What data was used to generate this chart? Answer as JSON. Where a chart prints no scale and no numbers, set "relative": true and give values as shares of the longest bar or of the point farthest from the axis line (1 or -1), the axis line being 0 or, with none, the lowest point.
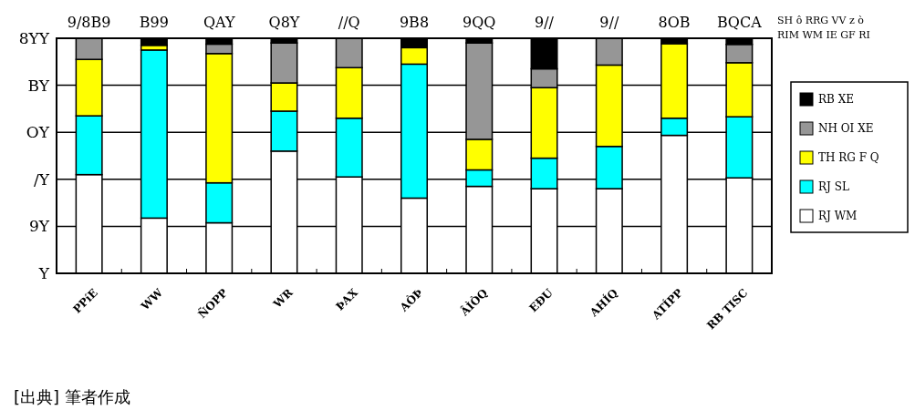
{
  "chart_data": {
    "type": "bar",
    "stacked": true,
    "relative": true,
    "categories": [
      "PPíE",
      "WW",
      "ÑOPP",
      "WR",
      "ÞAX",
      "AÒÞ",
      "ÂÌÒQ",
      "EÐU",
      "AHÍQ",
      "ATÍPP",
      "RB TISC"
    ],
    "series": [
      {
        "name": "RJ WM",
        "color": "#ffffff",
        "values": [
          0.42,
          0.235,
          0.215,
          0.52,
          0.41,
          0.32,
          0.37,
          0.36,
          0.36,
          0.587,
          0.406
        ]
      },
      {
        "name": "RJ SL",
        "color": "#00ffff",
        "values": [
          0.25,
          0.715,
          0.17,
          0.17,
          0.25,
          0.57,
          0.07,
          0.13,
          0.18,
          0.073,
          0.26
        ]
      },
      {
        "name": "TH RG F Q",
        "color": "#ffff00",
        "values": [
          0.24,
          0.02,
          0.55,
          0.12,
          0.215,
          0.07,
          0.13,
          0.3,
          0.346,
          0.317,
          0.23
        ]
      },
      {
        "name": "NH OI XE",
        "color": "#969696",
        "values": [
          0.09,
          0,
          0.04,
          0.17,
          0.125,
          0,
          0.41,
          0.08,
          0.114,
          0,
          0.078
        ]
      },
      {
        "name": "RB XE",
        "color": "#000000",
        "values": [
          0,
          0.03,
          0.025,
          0.02,
          0,
          0.04,
          0.02,
          0.13,
          0,
          0.023,
          0.026
        ]
      }
    ],
    "ref_lines": [
      {
        "axis": "y",
        "value": 0.2,
        "label": "9Y"
      },
      {
        "axis": "y",
        "value": 0.4,
        "label": "/Y"
      },
      {
        "axis": "y",
        "value": 0.6,
        "label": "OY"
      },
      {
        "axis": "y",
        "value": 0.8,
        "label": "BY"
      }
    ],
    "legend": "right",
    "annotations": [
      "Y",
      "8YY",
      "9/8B9",
      "B99",
      "QAY",
      "Q8Y",
      "//Q",
      "9B8",
      "9QQ",
      "9//",
      "9//",
      "8OB",
      "BQCA",
      "SH ô RRG VV z ò",
      "RIM WM IE GF RI",
      "[出典] 筆者作成"
    ]
  }
}
